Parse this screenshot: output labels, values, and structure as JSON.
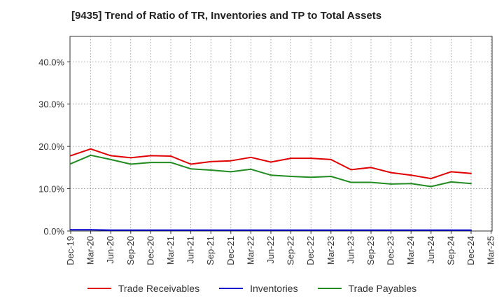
{
  "chart_data": {
    "type": "line",
    "title": "[9435]  Trend of Ratio of TR, Inventories and TP to Total Assets",
    "x": [
      "Dec-19",
      "Mar-20",
      "Jun-20",
      "Sep-20",
      "Dec-20",
      "Mar-21",
      "Jun-21",
      "Sep-21",
      "Dec-21",
      "Mar-22",
      "Jun-22",
      "Sep-22",
      "Dec-22",
      "Mar-23",
      "Jun-23",
      "Sep-23",
      "Dec-23",
      "Mar-24",
      "Jun-24",
      "Sep-24",
      "Dec-24",
      "Mar-25"
    ],
    "ylim": [
      0,
      46
    ],
    "yticks": [
      0,
      10,
      20,
      30,
      40
    ],
    "ytick_labels": [
      "0.0%",
      "10.0%",
      "20.0%",
      "30.0%",
      "40.0%"
    ],
    "grid": true,
    "legend_position": "bottom",
    "series": [
      {
        "name": "Trade Receivables",
        "color": "#e00000",
        "values": [
          17.8,
          19.4,
          17.8,
          17.3,
          17.8,
          17.7,
          15.8,
          16.4,
          16.6,
          17.4,
          16.3,
          17.2,
          17.2,
          16.9,
          14.5,
          15.0,
          13.8,
          13.2,
          12.4,
          14.0,
          13.6,
          null
        ]
      },
      {
        "name": "Inventories",
        "color": "#0000cc",
        "values": [
          0.3,
          0.3,
          0.2,
          0.2,
          0.2,
          0.2,
          0.2,
          0.2,
          0.2,
          0.2,
          0.2,
          0.2,
          0.2,
          0.2,
          0.2,
          0.2,
          0.2,
          0.2,
          0.2,
          0.2,
          0.2,
          null
        ]
      },
      {
        "name": "Trade Payables",
        "color": "#228b22",
        "values": [
          15.9,
          17.9,
          16.9,
          15.8,
          16.2,
          16.2,
          14.7,
          14.4,
          14.0,
          14.6,
          13.2,
          12.9,
          12.7,
          12.9,
          11.5,
          11.5,
          11.1,
          11.2,
          10.5,
          11.6,
          11.2,
          null
        ]
      }
    ]
  }
}
